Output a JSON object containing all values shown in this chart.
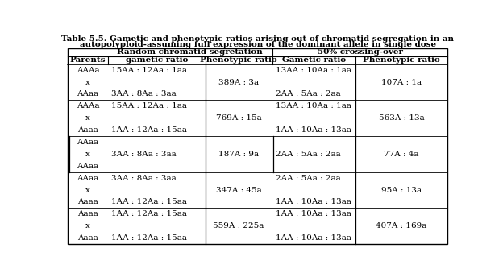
{
  "title_line1": "Table 5.5. Gametic and phenotypic ratios arising out of chromatid segregation in an",
  "title_line2": "autopolyploid-assuming full expression of the dominant allele in single dose",
  "header_random": "Random chromatid segretation",
  "header_50": "50% crossing-over",
  "col_headers": [
    "Parents",
    "gametic ratio",
    "Phenotypic ratio",
    "Gametic ratio",
    "Phenotypic ratio"
  ],
  "rows": [
    [
      "AAAa",
      "15AA : 12Aa : 1aa",
      "",
      "13AA : 10Aa : 1aa",
      ""
    ],
    [
      "x",
      "",
      "389A : 3a",
      "",
      "107A : 1a"
    ],
    [
      "AAaa",
      "3AA : 8Aa : 3aa",
      "",
      "2AA : 5Aa : 2aa",
      ""
    ],
    [
      "AAAa",
      "15AA : 12Aa : 1aa",
      "",
      "13AA : 10Aa : 1aa",
      ""
    ],
    [
      "x",
      "",
      "769A : 15a",
      "",
      "563A : 13a"
    ],
    [
      "Aaaa",
      "1AA : 12Aa : 15aa",
      "",
      "1AA : 10Aa : 13aa",
      ""
    ],
    [
      "AAaa",
      "",
      "",
      "",
      ""
    ],
    [
      "x",
      "3AA : 8Aa : 3aa",
      "187A : 9a",
      "2AA : 5Aa : 2aa",
      "77A : 4a"
    ],
    [
      "AAaa",
      "",
      "",
      "",
      ""
    ],
    [
      "AAaa",
      "3AA : 8Aa : 3aa",
      "",
      "2AA : 5Aa : 2aa",
      ""
    ],
    [
      "x",
      "",
      "347A : 45a",
      "",
      "95A : 13a"
    ],
    [
      "Aaaa",
      "1AA : 12Aa : 15aa",
      "",
      "1AA : 10Aa : 13aa",
      ""
    ],
    [
      "Aaaa",
      "1AA : 12Aa : 15aa",
      "",
      "1AA : 10Aa : 13aa",
      ""
    ],
    [
      "x",
      "",
      "559A : 225a",
      "",
      "407A : 169a"
    ],
    [
      "Aaaa",
      "1AA : 12Aa : 15aa",
      "",
      "1AA : 10Aa : 13aa",
      ""
    ]
  ],
  "background_color": "#ffffff",
  "text_color": "#000000",
  "title_fontsize": 7.5,
  "header_fontsize": 7.5,
  "data_fontsize": 7.5
}
